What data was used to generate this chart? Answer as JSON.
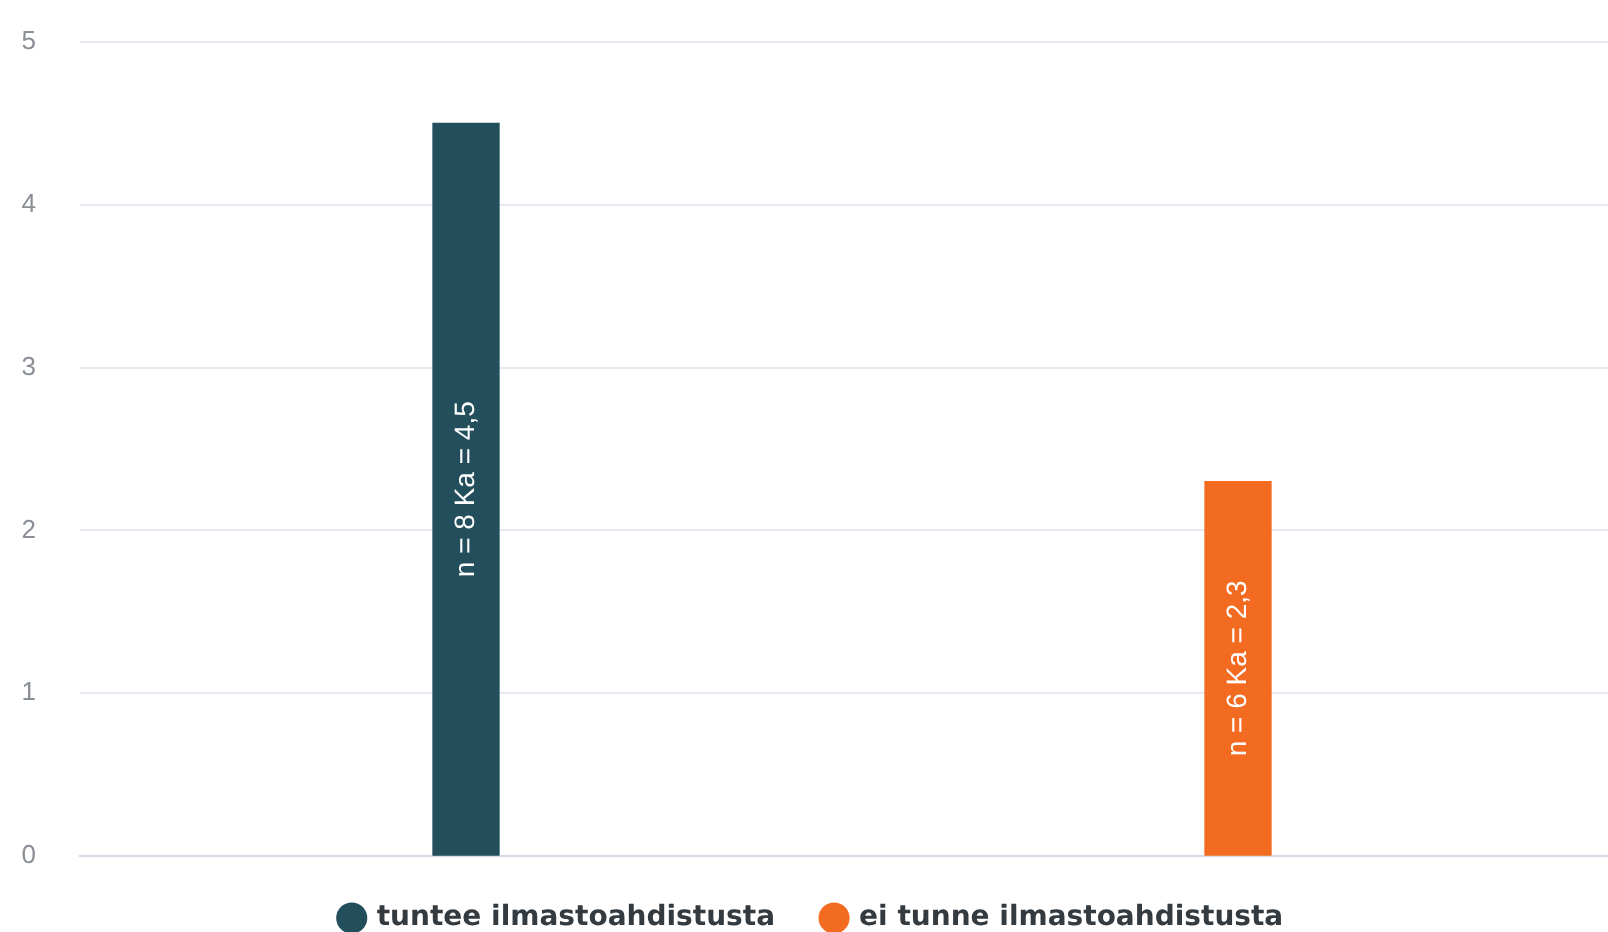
{
  "chart_data": {
    "type": "bar",
    "categories": [
      null,
      null
    ],
    "series": [
      {
        "name": "tuntee ilmastoahdistusta",
        "color": "#234e5c",
        "values": [
          4.5,
          null
        ],
        "value_labels": [
          "n = 8 Ka = 4,5",
          null
        ]
      },
      {
        "name": "ei tunne ilmastoahdistusta",
        "color": "#f26b21",
        "values": [
          null,
          2.3
        ],
        "value_labels": [
          null,
          "n = 6 Ka = 2,3"
        ]
      }
    ],
    "ylim": [
      0,
      5
    ],
    "yticks": [
      0,
      1,
      2,
      3,
      4,
      5
    ],
    "grid": "y",
    "legend": "bottom"
  }
}
